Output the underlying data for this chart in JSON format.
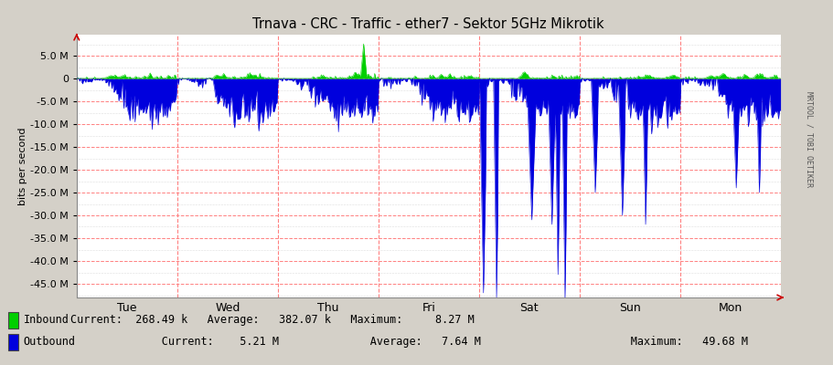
{
  "title": "Trnava - CRC - Traffic - ether7 - Sektor 5GHz Mikrotik",
  "ylabel_display": "bits per second",
  "bg_color": "#d4d0c8",
  "plot_bg_color": "#ffffff",
  "grid_color_red": "#ff8080",
  "grid_color_dot": "#c0c0c0",
  "inbound_color": "#00cf00",
  "outbound_color": "#0000dd",
  "x_labels": [
    "Tue",
    "Wed",
    "Thu",
    "Fri",
    "Sat",
    "Sun",
    "Mon"
  ],
  "ylim_min": -48000000,
  "ylim_max": 9600000,
  "yticks": [
    5000000,
    0,
    -5000000,
    -10000000,
    -15000000,
    -20000000,
    -25000000,
    -30000000,
    -35000000,
    -40000000,
    -45000000
  ],
  "n_points": 700,
  "seed": 12345,
  "right_label": "MRTOOL / TOBI OETIKER"
}
